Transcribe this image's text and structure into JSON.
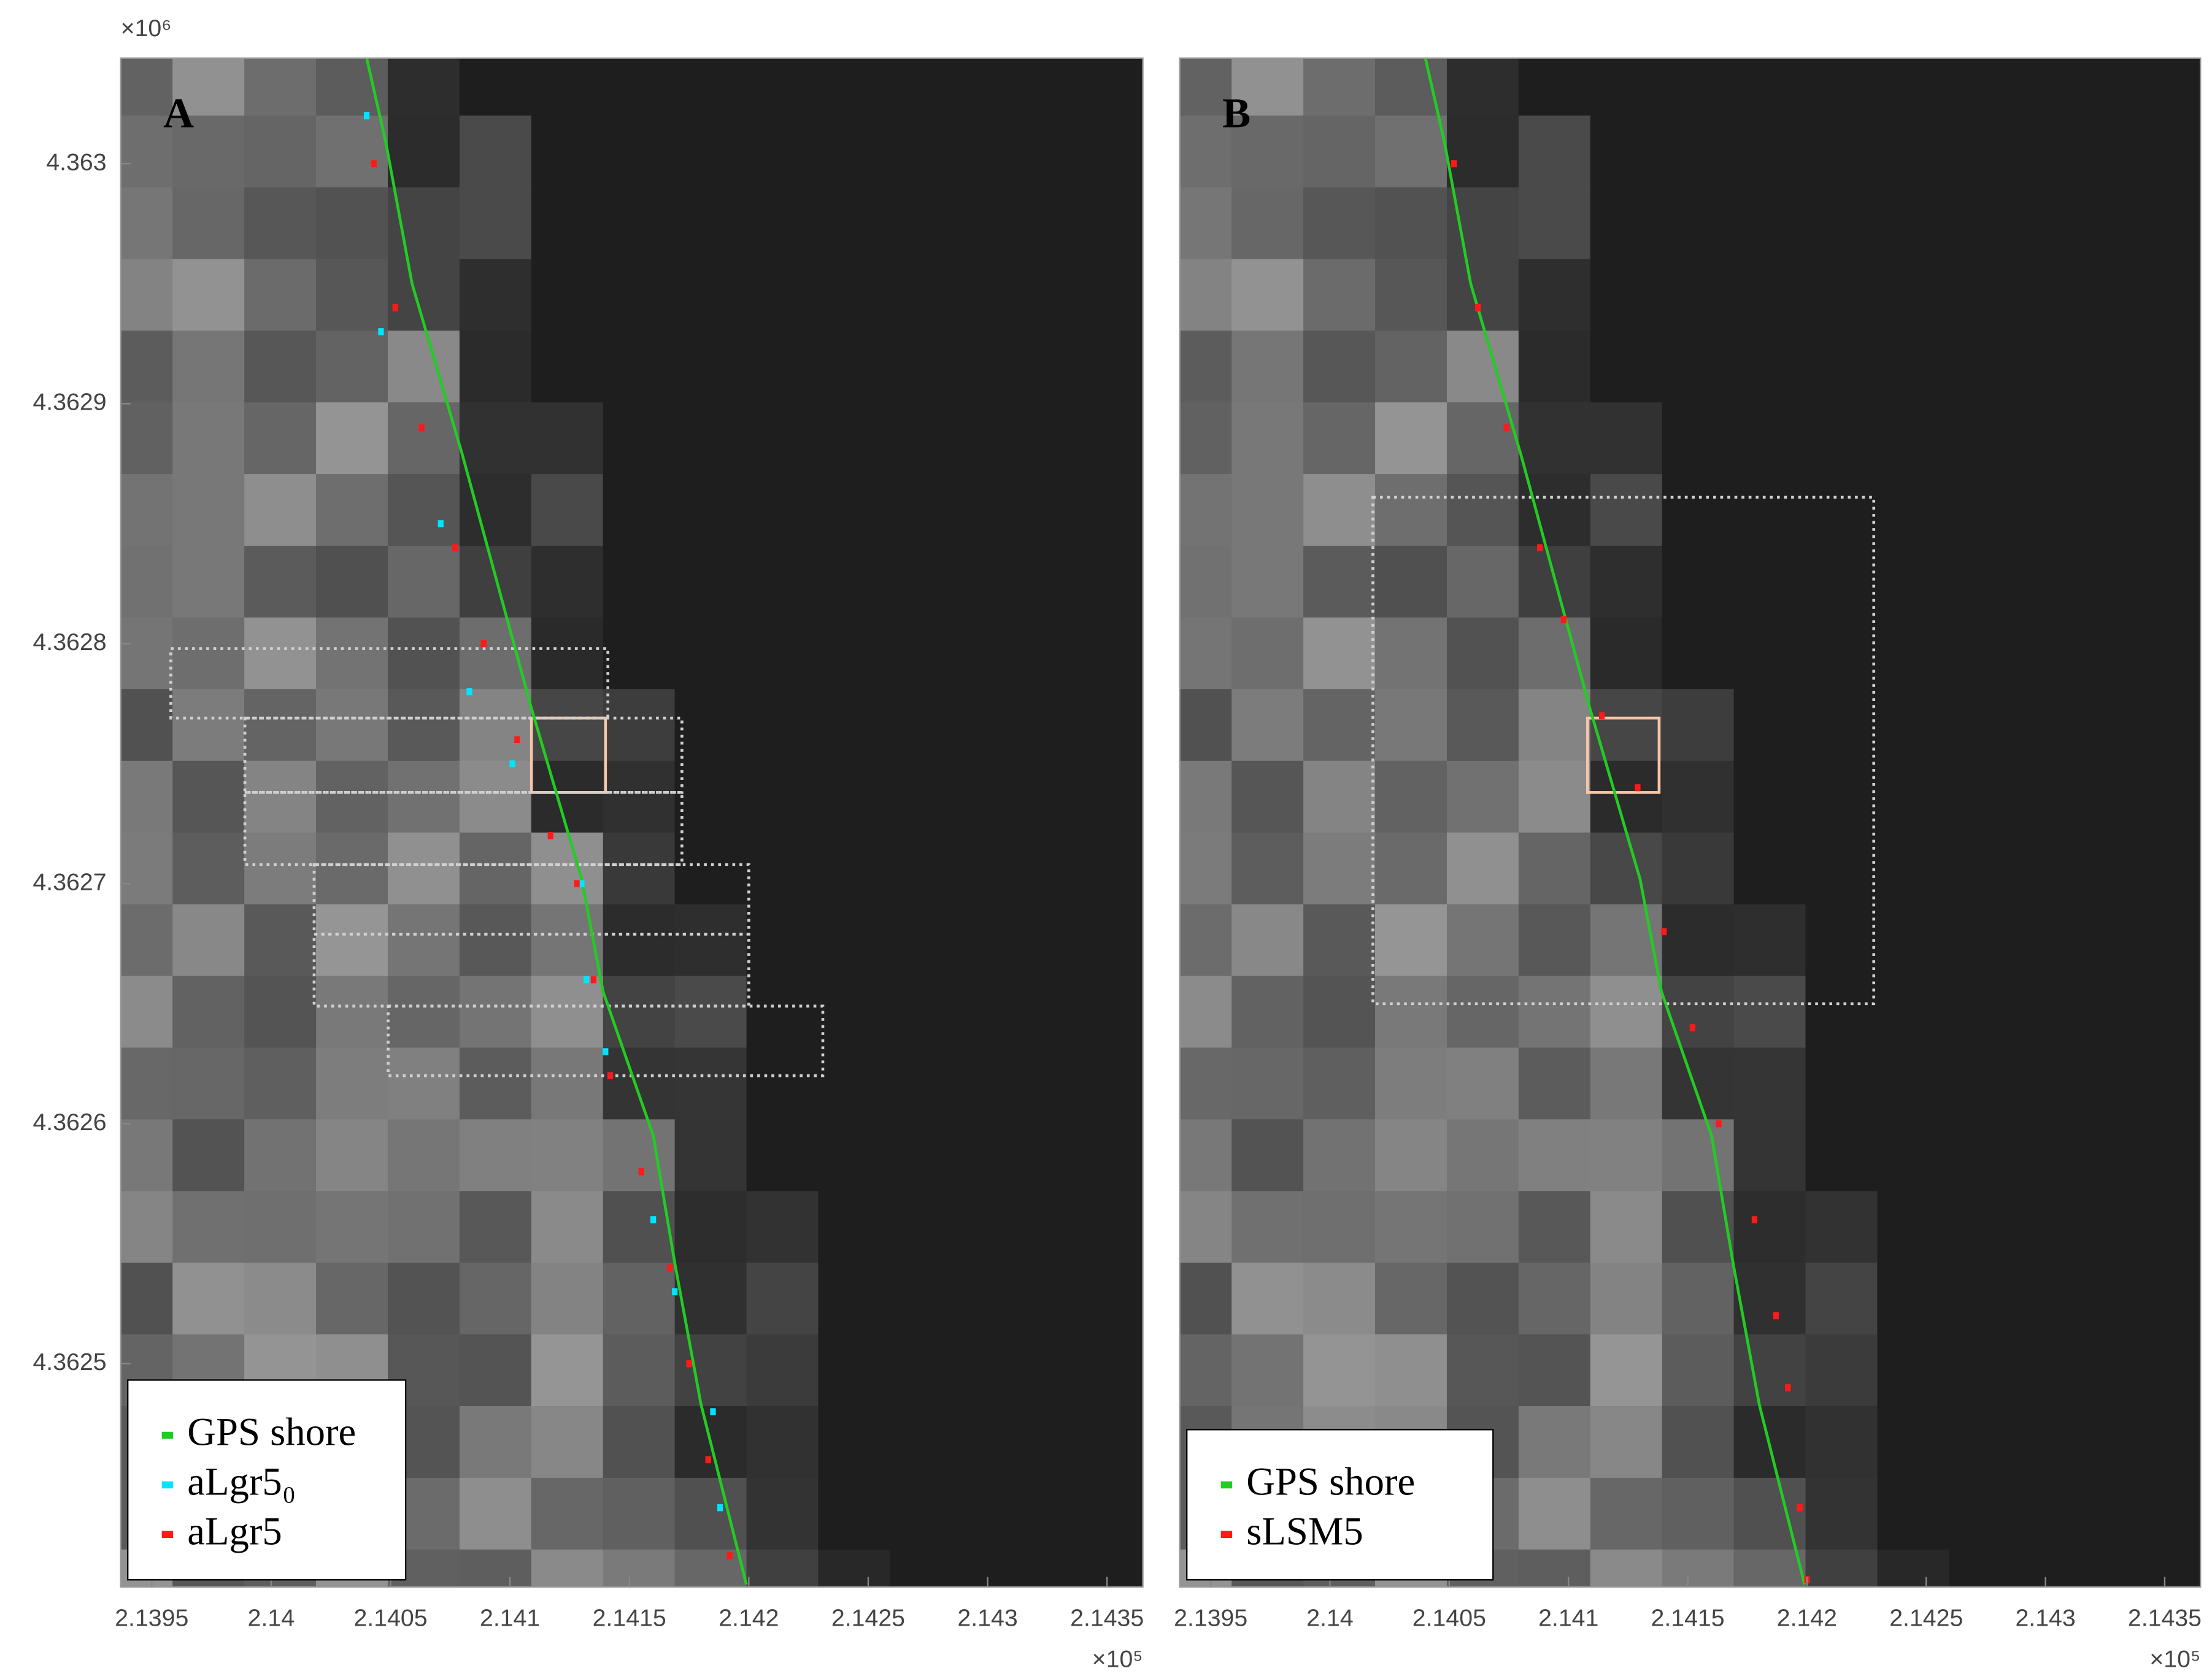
{
  "chart_data": [
    {
      "type": "line",
      "panel_label": "A",
      "xlim": [
        2.13937,
        2.14365
      ],
      "ylim": [
        4.362407,
        4.363044
      ],
      "xticks": [
        2.1395,
        2.14,
        2.1405,
        2.141,
        2.1415,
        2.142,
        2.1425,
        2.143,
        2.1435
      ],
      "yticks": [
        4.3625,
        4.3626,
        4.3627,
        4.3628,
        4.3629,
        4.363
      ],
      "x_exponent": "×10⁵",
      "y_exponent": "×10⁶",
      "legend": "lower left",
      "series": [
        {
          "name": "GPS shore",
          "color": "#22cc22",
          "mode": "line",
          "x": [
            2.1404,
            2.14048,
            2.14059,
            2.1408,
            2.14109,
            2.1413,
            2.14139,
            2.1416,
            2.14169,
            2.1418,
            2.14199
          ],
          "values": [
            4.363044,
            4.363009,
            4.36295,
            4.362879,
            4.362773,
            4.362702,
            4.362655,
            4.362595,
            4.362542,
            4.362483,
            4.362408
          ]
        },
        {
          "name": "aLgr5₀",
          "color": "#00e5ff",
          "mode": "markers",
          "x": [
            2.1404,
            2.14046,
            2.14071,
            2.14083,
            2.14101,
            2.1413,
            2.14132,
            2.1414,
            2.1416,
            2.14169,
            2.14185,
            2.14188
          ],
          "values": [
            4.36302,
            4.36293,
            4.36285,
            4.36278,
            4.36275,
            4.3627,
            4.36266,
            4.36263,
            4.36256,
            4.36253,
            4.36248,
            4.36244
          ]
        },
        {
          "name": "aLgr5",
          "color": "#ff1a1a",
          "mode": "markers",
          "x": [
            2.14043,
            2.14052,
            2.14063,
            2.14077,
            2.14089,
            2.14103,
            2.14117,
            2.14128,
            2.14135,
            2.14142,
            2.14155,
            2.14167,
            2.14175,
            2.14183,
            2.14192
          ],
          "values": [
            4.363,
            4.36294,
            4.36289,
            4.36284,
            4.3628,
            4.36276,
            4.36272,
            4.3627,
            4.36266,
            4.36262,
            4.36258,
            4.36254,
            4.3625,
            4.36246,
            4.36242
          ]
        }
      ],
      "boxes": [
        {
          "style": "solid",
          "x": [
            2.14109,
            2.1414
          ],
          "y": [
            4.362738,
            4.362769
          ]
        },
        {
          "style": "dotted",
          "x": [
            2.13958,
            2.14141
          ],
          "y": [
            4.362769,
            4.362798
          ]
        },
        {
          "style": "dotted",
          "x": [
            2.13989,
            2.14172
          ],
          "y": [
            4.362738,
            4.362769
          ]
        },
        {
          "style": "dotted",
          "x": [
            2.13989,
            2.14172
          ],
          "y": [
            4.362708,
            4.362738
          ]
        },
        {
          "style": "dotted",
          "x": [
            2.14018,
            2.142
          ],
          "y": [
            4.362679,
            4.362708
          ]
        },
        {
          "style": "dotted",
          "x": [
            2.14018,
            2.142
          ],
          "y": [
            4.362649,
            4.362679
          ]
        },
        {
          "style": "dotted",
          "x": [
            2.14049,
            2.14231
          ],
          "y": [
            4.36262,
            4.362649
          ]
        }
      ]
    },
    {
      "type": "line",
      "panel_label": "B",
      "xlim": [
        2.13937,
        2.14365
      ],
      "ylim": [
        4.362407,
        4.363044
      ],
      "xticks": [
        2.1395,
        2.14,
        2.1405,
        2.141,
        2.1415,
        2.142,
        2.1425,
        2.143,
        2.1435
      ],
      "x_exponent": "×10⁵",
      "legend": "lower left",
      "series": [
        {
          "name": "GPS shore",
          "color": "#22cc22",
          "mode": "line",
          "x": [
            2.1404,
            2.14048,
            2.14059,
            2.1408,
            2.14109,
            2.1413,
            2.14139,
            2.1416,
            2.14169,
            2.1418,
            2.14199
          ],
          "values": [
            4.363044,
            4.363009,
            4.36295,
            4.362879,
            4.362773,
            4.362702,
            4.362655,
            4.362595,
            4.362542,
            4.362483,
            4.362408
          ]
        },
        {
          "name": "sLSM5",
          "color": "#ff1a1a",
          "mode": "markers",
          "x": [
            2.14052,
            2.14062,
            2.14074,
            2.14088,
            2.14098,
            2.14114,
            2.14129,
            2.1414,
            2.14152,
            2.14163,
            2.14178,
            2.14187,
            2.14192,
            2.14197,
            2.142
          ],
          "values": [
            4.363,
            4.36294,
            4.36289,
            4.36284,
            4.36281,
            4.36277,
            4.36274,
            4.36268,
            4.36264,
            4.3626,
            4.36256,
            4.36252,
            4.36249,
            4.36244,
            4.36241
          ]
        }
      ],
      "boxes": [
        {
          "style": "solid",
          "x": [
            2.14108,
            2.14138
          ],
          "y": [
            4.362738,
            4.362769
          ]
        },
        {
          "style": "dotted",
          "x": [
            2.14018,
            2.14228
          ],
          "y": [
            4.36265,
            4.362861
          ]
        }
      ]
    }
  ]
}
